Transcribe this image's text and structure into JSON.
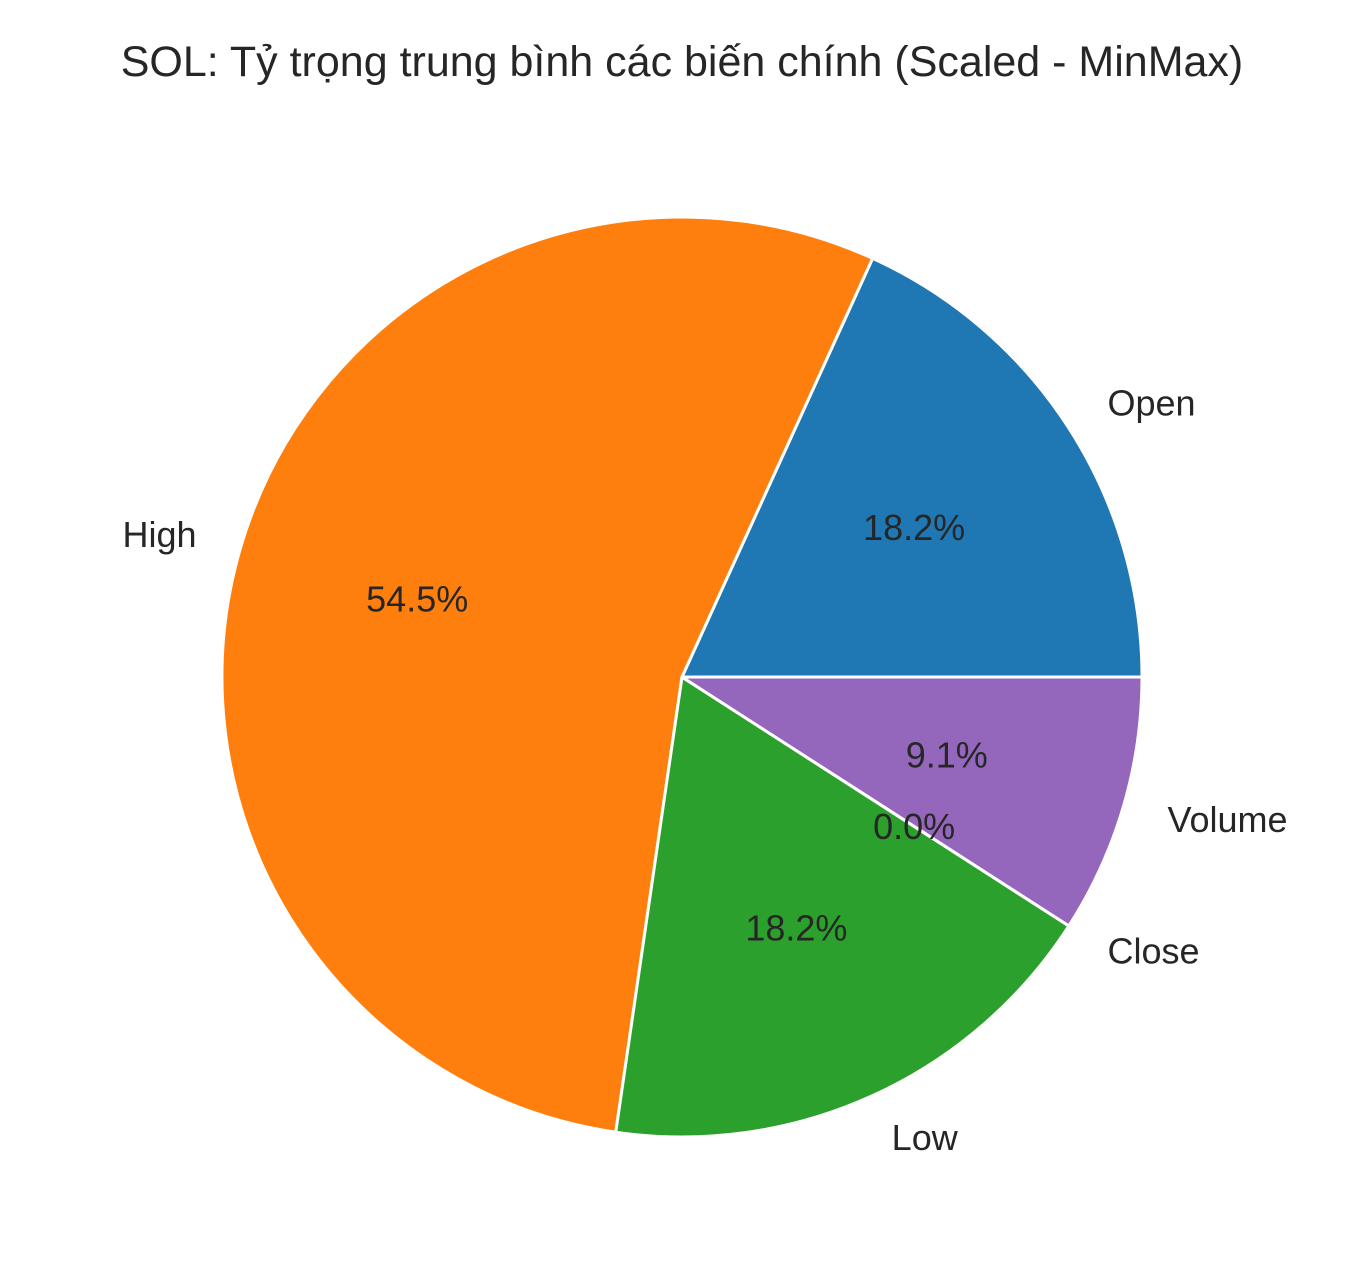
{
  "chart_data": {
    "type": "pie",
    "title": "SOL: Tỷ trọng trung bình các biến chính (Scaled - MinMax)",
    "categories": [
      "Open",
      "High",
      "Low",
      "Close",
      "Volume"
    ],
    "values": [
      18.2,
      54.5,
      18.2,
      0.0,
      9.1
    ],
    "percent_labels": [
      "18.2%",
      "54.5%",
      "18.2%",
      "0.0%",
      "9.1%"
    ],
    "colors": [
      "#1f77b4",
      "#ff7f0e",
      "#2ca02c",
      "#d62728",
      "#9467bd"
    ],
    "start_angle_deg": 0,
    "direction": "counterclockwise",
    "wedge_edge_color": "#ffffff"
  }
}
